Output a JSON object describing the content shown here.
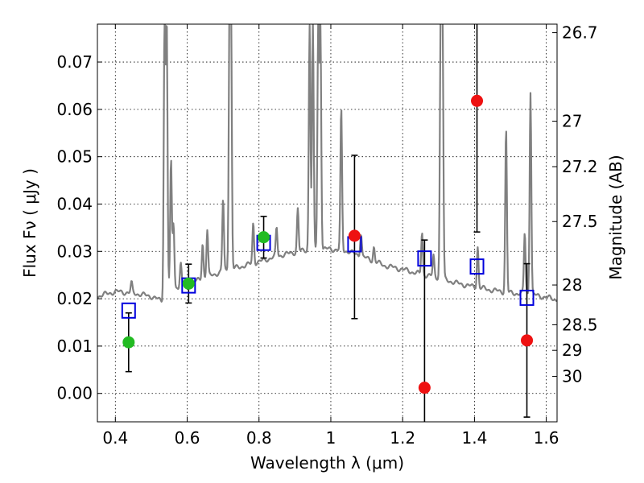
{
  "chart_data": {
    "type": "scatter",
    "xlabel": "Wavelength  λ (μm)",
    "ylabel": "Flux  Fν  ( μJy )",
    "y2label": "Magnitude (AB)",
    "xlim": [
      0.35,
      1.63
    ],
    "ylim": [
      -0.006,
      0.078
    ],
    "grid": true,
    "x_ticks": [
      0.4,
      0.6,
      0.8,
      1.0,
      1.2,
      1.4,
      1.6
    ],
    "x_tick_labels": [
      "0.4",
      "0.6",
      "0.8",
      "1",
      "1.2",
      "1.4",
      "1.6"
    ],
    "y_ticks": [
      0.0,
      0.01,
      0.02,
      0.03,
      0.04,
      0.05,
      0.06,
      0.07
    ],
    "y_tick_labels": [
      "0.00",
      "0.01",
      "0.02",
      "0.03",
      "0.04",
      "0.05",
      "0.06",
      "0.07"
    ],
    "y2_tick_labels": [
      "26.7",
      "27",
      "27.2",
      "27.5",
      "28",
      "28.5",
      "29",
      "30"
    ],
    "y2_tick_flux": [
      0.0762,
      0.0575,
      0.0479,
      0.0363,
      0.0229,
      0.0145,
      0.0091,
      0.0036
    ],
    "colors": {
      "spectrum": "#808080",
      "model": "#0000dd",
      "detected": "#22bb22",
      "undetected": "#ee1111",
      "errorbar": "#000000",
      "grid": "#000000"
    },
    "spectrum_continuum": [
      [
        0.35,
        0.0205
      ],
      [
        0.4,
        0.0215
      ],
      [
        0.45,
        0.0212
      ],
      [
        0.5,
        0.0205
      ],
      [
        0.53,
        0.0195
      ],
      [
        0.54,
        0.0218
      ],
      [
        0.6,
        0.023
      ],
      [
        0.65,
        0.0245
      ],
      [
        0.7,
        0.0258
      ],
      [
        0.75,
        0.0268
      ],
      [
        0.8,
        0.0278
      ],
      [
        0.85,
        0.029
      ],
      [
        0.9,
        0.0298
      ],
      [
        0.95,
        0.0305
      ],
      [
        1.0,
        0.0305
      ],
      [
        1.05,
        0.03
      ],
      [
        1.1,
        0.0285
      ],
      [
        1.15,
        0.027
      ],
      [
        1.2,
        0.0262
      ],
      [
        1.25,
        0.0252
      ],
      [
        1.3,
        0.0245
      ],
      [
        1.35,
        0.0233
      ],
      [
        1.4,
        0.0225
      ],
      [
        1.45,
        0.0218
      ],
      [
        1.5,
        0.0212
      ],
      [
        1.55,
        0.021
      ],
      [
        1.6,
        0.0203
      ],
      [
        1.63,
        0.0198
      ]
    ],
    "spectrum_lines": [
      [
        0.445,
        0.0233
      ],
      [
        0.537,
        0.078
      ],
      [
        0.543,
        0.078
      ],
      [
        0.555,
        0.049
      ],
      [
        0.562,
        0.036
      ],
      [
        0.582,
        0.0275
      ],
      [
        0.643,
        0.0318
      ],
      [
        0.656,
        0.0345
      ],
      [
        0.7,
        0.041
      ],
      [
        0.718,
        0.078
      ],
      [
        0.722,
        0.078
      ],
      [
        0.784,
        0.036
      ],
      [
        0.849,
        0.035
      ],
      [
        0.908,
        0.039
      ],
      [
        0.941,
        0.078
      ],
      [
        0.95,
        0.078
      ],
      [
        0.965,
        0.078
      ],
      [
        0.971,
        0.078
      ],
      [
        1.029,
        0.06
      ],
      [
        1.084,
        0.034
      ],
      [
        1.12,
        0.031
      ],
      [
        1.254,
        0.034
      ],
      [
        1.286,
        0.029
      ],
      [
        1.306,
        0.078
      ],
      [
        1.311,
        0.078
      ],
      [
        1.409,
        0.031
      ],
      [
        1.488,
        0.056
      ],
      [
        1.556,
        0.064
      ],
      [
        1.54,
        0.034
      ]
    ],
    "model_points": [
      {
        "x": 0.437,
        "y": 0.0175
      },
      {
        "x": 0.604,
        "y": 0.0228
      },
      {
        "x": 0.813,
        "y": 0.0318
      },
      {
        "x": 1.066,
        "y": 0.0315
      },
      {
        "x": 1.261,
        "y": 0.0285
      },
      {
        "x": 1.407,
        "y": 0.0268
      },
      {
        "x": 1.546,
        "y": 0.0202
      }
    ],
    "detected_points": [
      {
        "x": 0.437,
        "y": 0.0108,
        "err_low": 0.0062,
        "err_high": 0.0062
      },
      {
        "x": 0.604,
        "y": 0.0232,
        "err_low": 0.0041,
        "err_high": 0.0041
      },
      {
        "x": 0.813,
        "y": 0.033,
        "err_low": 0.0044,
        "err_high": 0.0044
      }
    ],
    "undetected_points": [
      {
        "x": 1.066,
        "y": 0.0333,
        "err_low": 0.0175,
        "err_high": 0.017
      },
      {
        "x": 1.261,
        "y": 0.0012,
        "err_low": 0.008,
        "err_high": 0.0312
      },
      {
        "x": 1.407,
        "y": 0.0618,
        "err_low": 0.0277,
        "err_high": 0.02
      },
      {
        "x": 1.546,
        "y": 0.0112,
        "err_low": 0.0162,
        "err_high": 0.0162
      }
    ]
  }
}
